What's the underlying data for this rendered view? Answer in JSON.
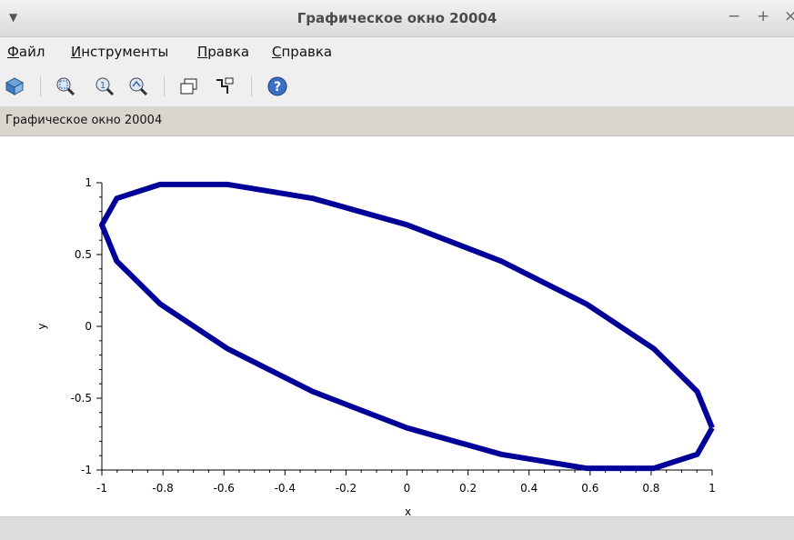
{
  "window": {
    "title": "Графическое окно 20004",
    "controls": {
      "minimize": "−",
      "maximize": "+",
      "close": "×"
    }
  },
  "menu": {
    "items": [
      {
        "first": "Ф",
        "rest": "айл"
      },
      {
        "first": "И",
        "rest": "нструменты"
      },
      {
        "first": "П",
        "rest": "равка"
      },
      {
        "first": "С",
        "rest": "правка"
      }
    ]
  },
  "toolbar": {
    "icons": [
      "rotate-icon",
      "zoom-area-icon",
      "zoom-reset-icon",
      "zoom-out-icon",
      "windows-icon",
      "datatip-icon",
      "help-icon"
    ],
    "help_glyph": "?"
  },
  "status": {
    "text": "Графическое окно 20004"
  },
  "colors": {
    "curve": "#000099",
    "axis": "#000000"
  },
  "chart_data": {
    "type": "line",
    "title": "",
    "xlabel": "x",
    "ylabel": "y",
    "xlim": [
      -1,
      1
    ],
    "ylim": [
      -1,
      1
    ],
    "xticks": [
      "-1",
      "-0.8",
      "-0.6",
      "-0.4",
      "-0.2",
      "0",
      "0.2",
      "0.4",
      "0.6",
      "0.8",
      "1"
    ],
    "yticks": [
      "-1",
      "-0.5",
      "0",
      "0.5",
      "1"
    ],
    "grid": false,
    "series": [
      {
        "x": [
          1.0,
          0.951,
          0.809,
          0.588,
          0.309,
          0.0,
          -0.309,
          -0.588,
          -0.809,
          -0.951,
          -1.0,
          -0.951,
          -0.809,
          -0.588,
          -0.309,
          0.0,
          0.309,
          0.588,
          0.809,
          0.951,
          1.0
        ],
        "y": [
          -0.707,
          -0.454,
          -0.156,
          0.156,
          0.454,
          0.707,
          0.891,
          0.988,
          0.988,
          0.891,
          0.707,
          0.454,
          0.156,
          -0.156,
          -0.454,
          -0.707,
          -0.891,
          -0.988,
          -0.988,
          -0.891,
          -0.707
        ]
      }
    ]
  }
}
